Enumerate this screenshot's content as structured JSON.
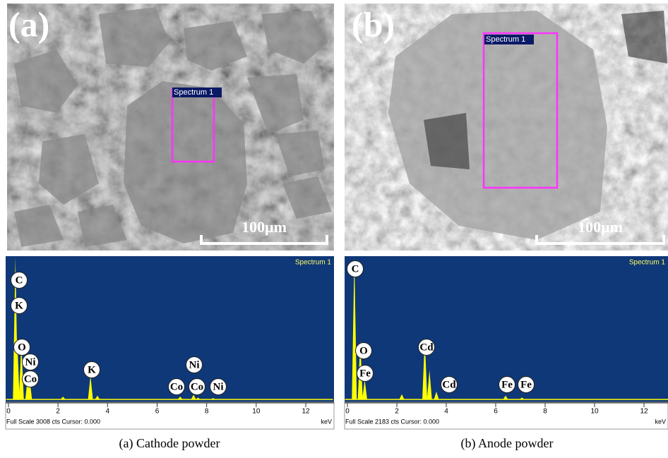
{
  "panels": [
    {
      "label": "(a)",
      "spectrum_box": "Spectrum 1",
      "scale_bar": "100μm",
      "spectrum": {
        "title": "Spectrum 1",
        "xlim": [
          -0.1,
          13.1
        ],
        "xticks": [
          0,
          2,
          4,
          6,
          8,
          10,
          12
        ],
        "ylim": [
          0,
          3008
        ],
        "x_unit": "keV",
        "status": "Full Scale 3008 cts Cursor: 0.000",
        "peaks": [
          {
            "x": 0.28,
            "counts": 3008
          },
          {
            "x": 0.35,
            "counts": 1300
          },
          {
            "x": 0.52,
            "counts": 1200
          },
          {
            "x": 0.78,
            "counts": 500
          },
          {
            "x": 0.85,
            "counts": 450
          },
          {
            "x": 2.2,
            "counts": 60
          },
          {
            "x": 3.31,
            "counts": 500
          },
          {
            "x": 3.59,
            "counts": 80
          },
          {
            "x": 6.93,
            "counts": 60
          },
          {
            "x": 7.47,
            "counts": 100
          },
          {
            "x": 7.65,
            "counts": 40
          },
          {
            "x": 8.26,
            "counts": 30
          }
        ],
        "element_labels": [
          "C",
          "K",
          "O",
          "Ni",
          "Co",
          "K",
          "Ni",
          "Co",
          "Co",
          "Ni"
        ]
      },
      "caption": "(a) Cathode powder"
    },
    {
      "label": "(b)",
      "spectrum_box": "Spectrum 1",
      "scale_bar": "100μm",
      "spectrum": {
        "title": "Spectrum 1",
        "xlim": [
          -0.1,
          13.0
        ],
        "xticks": [
          0,
          2,
          4,
          6,
          8,
          10,
          12
        ],
        "ylim": [
          0,
          2183
        ],
        "x_unit": "keV",
        "status": "Full Scale 2183 cts Cursor: 0.000",
        "peaks": [
          {
            "x": 0.28,
            "counts": 2183
          },
          {
            "x": 0.52,
            "counts": 900
          },
          {
            "x": 0.7,
            "counts": 300
          },
          {
            "x": 2.2,
            "counts": 80
          },
          {
            "x": 3.13,
            "counts": 930
          },
          {
            "x": 3.32,
            "counts": 450
          },
          {
            "x": 3.6,
            "counts": 120
          },
          {
            "x": 6.4,
            "counts": 60
          },
          {
            "x": 7.06,
            "counts": 30
          }
        ],
        "element_labels": [
          "C",
          "O",
          "Fe",
          "Cd",
          "Cd",
          "Fe",
          "Fe"
        ]
      },
      "caption": "(b) Anode powder"
    }
  ]
}
